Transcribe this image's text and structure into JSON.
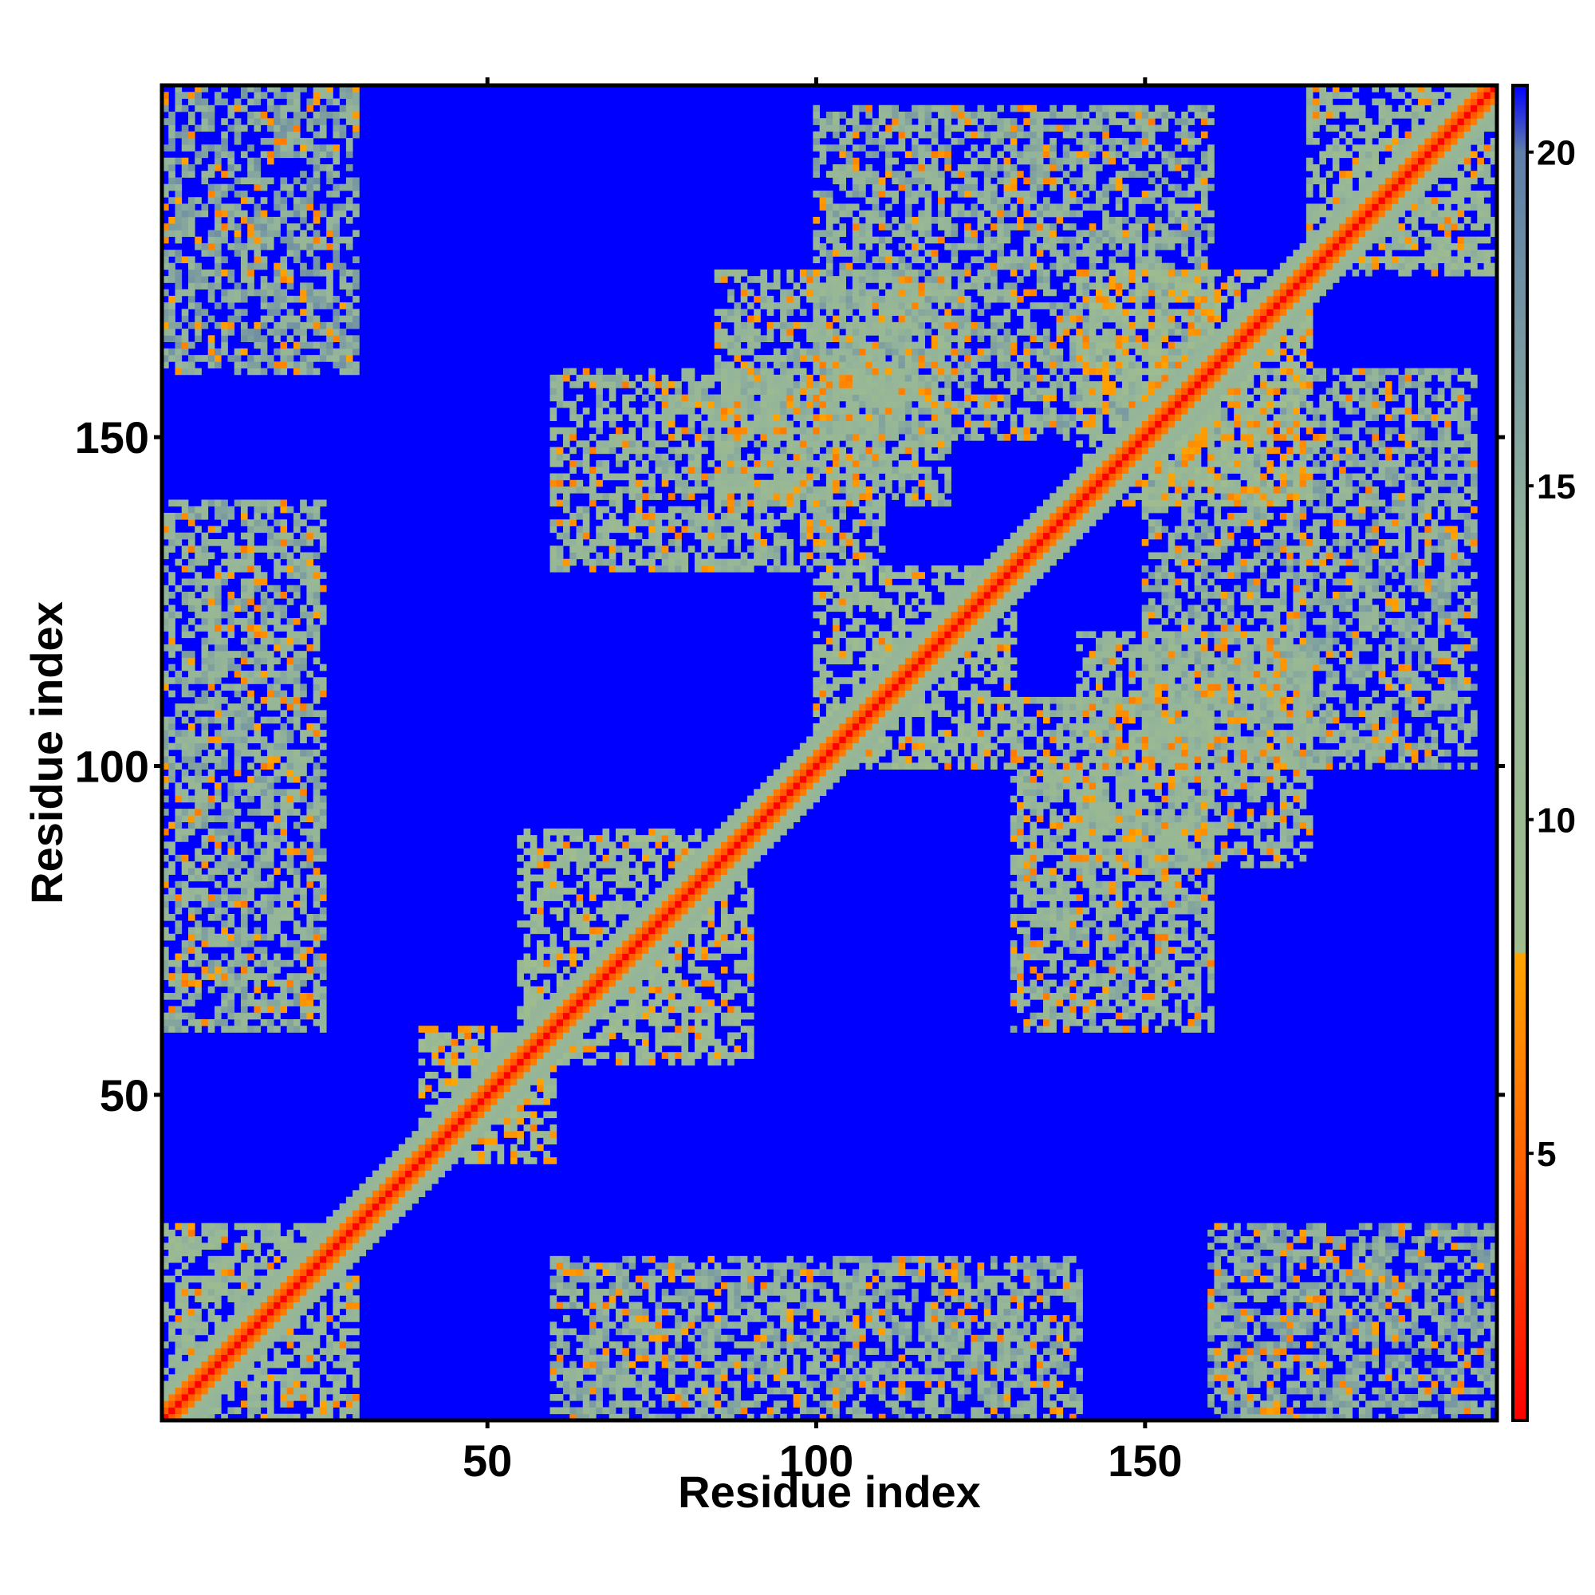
{
  "chart_data": {
    "type": "heatmap",
    "title": "",
    "xlabel": "Residue index",
    "ylabel": "Residue index",
    "xlim": [
      1,
      203
    ],
    "ylim": [
      1,
      203
    ],
    "x_ticks": [
      50,
      100,
      150
    ],
    "y_ticks": [
      50,
      100,
      150
    ],
    "colorbar": {
      "range": [
        1,
        21
      ],
      "ticks": [
        5,
        10,
        15,
        20
      ],
      "stops": [
        {
          "value": 1,
          "color": "#ff0000"
        },
        {
          "value": 5,
          "color": "#ff6600"
        },
        {
          "value": 8,
          "color": "#ffa500"
        },
        {
          "value": 8.01,
          "color": "#9fbd8e"
        },
        {
          "value": 14,
          "color": "#93b49a"
        },
        {
          "value": 20,
          "color": "#5f7fa8"
        },
        {
          "value": 21,
          "color": "#0000ff"
        }
      ]
    },
    "matrix_description_values": {
      "diagonal_value": 1,
      "background_value": 21,
      "contact_blocks": [
        {
          "x": [
            1,
            30
          ],
          "y": [
            1,
            30
          ],
          "value": 12
        },
        {
          "x": [
            40,
            60
          ],
          "y": [
            40,
            60
          ],
          "value": 10
        },
        {
          "x": [
            55,
            90
          ],
          "y": [
            55,
            90
          ],
          "value": 11
        },
        {
          "x": [
            100,
            130
          ],
          "y": [
            100,
            130
          ],
          "value": 11
        },
        {
          "x": [
            140,
            175
          ],
          "y": [
            140,
            175
          ],
          "value": 10
        },
        {
          "x": [
            175,
            203
          ],
          "y": [
            175,
            203
          ],
          "value": 12
        },
        {
          "x": [
            1,
            25
          ],
          "y": [
            60,
            140
          ],
          "value": 14
        },
        {
          "x": [
            60,
            140
          ],
          "y": [
            1,
            25
          ],
          "value": 14
        },
        {
          "x": [
            1,
            30
          ],
          "y": [
            160,
            203
          ],
          "value": 15
        },
        {
          "x": [
            160,
            203
          ],
          "y": [
            1,
            30
          ],
          "value": 15
        },
        {
          "x": [
            130,
            160
          ],
          "y": [
            60,
            110
          ],
          "value": 13
        },
        {
          "x": [
            60,
            110
          ],
          "y": [
            130,
            160
          ],
          "value": 13
        },
        {
          "x": [
            150,
            200
          ],
          "y": [
            100,
            160
          ],
          "value": 14
        },
        {
          "x": [
            100,
            160
          ],
          "y": [
            150,
            200
          ],
          "value": 14
        },
        {
          "x": [
            85,
            120
          ],
          "y": [
            140,
            175
          ],
          "value": 13
        },
        {
          "x": [
            140,
            175
          ],
          "y": [
            85,
            120
          ],
          "value": 13
        }
      ]
    }
  }
}
